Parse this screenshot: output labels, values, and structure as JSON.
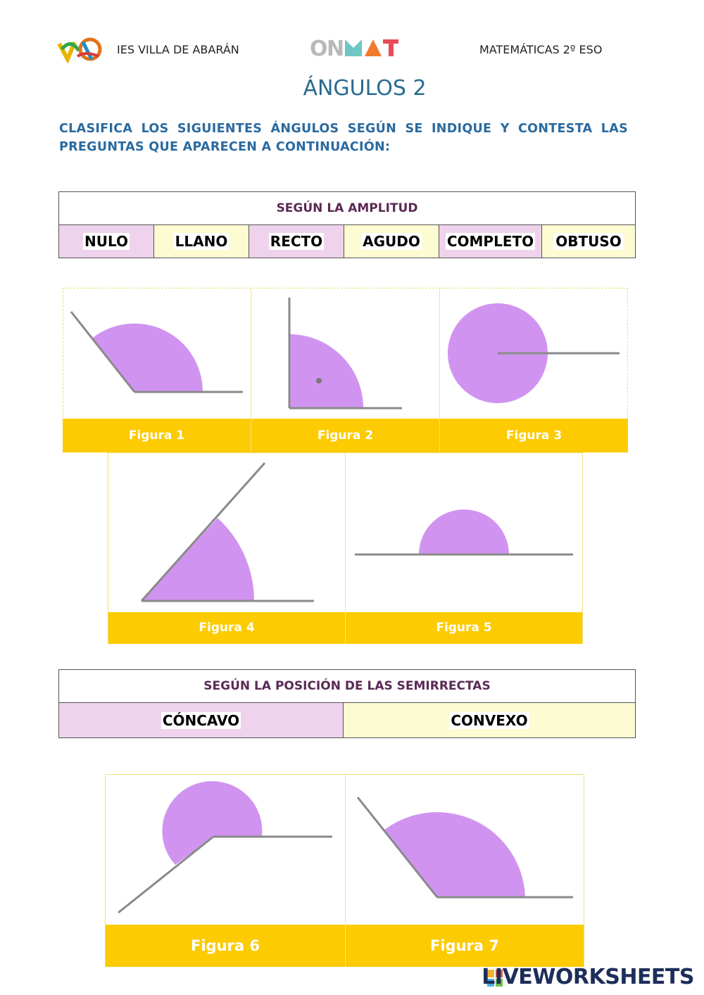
{
  "header": {
    "school": "IES VILLA DE ABARÁN",
    "brand": "ONMAT",
    "subject": "MATEMÁTICAS 2º ESO"
  },
  "title": "ÁNGULOS 2",
  "instructions": "CLASIFICA LOS SIGUIENTES ÁNGULOS SEGÚN SE INDIQUE Y CONTESTA LAS PREGUNTAS QUE APARECEN A CONTINUACIÓN:",
  "table1": {
    "heading": "SEGÚN LA AMPLITUD",
    "options": [
      "NULO",
      "LLANO",
      "RECTO",
      "AGUDO",
      "COMPLETO",
      "OBTUSO"
    ]
  },
  "figures": [
    "Figura 1",
    "Figura 2",
    "Figura 3",
    "Figura 4",
    "Figura 5",
    "Figura 6",
    "Figura 7"
  ],
  "table2": {
    "heading": "SEGÚN LA POSICIÓN DE LAS SEMIRRECTAS",
    "options": [
      "CÓNCAVO",
      "CONVEXO"
    ]
  },
  "colors": {
    "angle_fill": "#d094f0",
    "ray": "#8a8a8a",
    "figure_label_bg": "#fccb02",
    "pink_cell": "#efd3ec",
    "yellow_cell": "#fdfbd2"
  },
  "footer": {
    "brand": "LIVEWORKSHEETS"
  }
}
